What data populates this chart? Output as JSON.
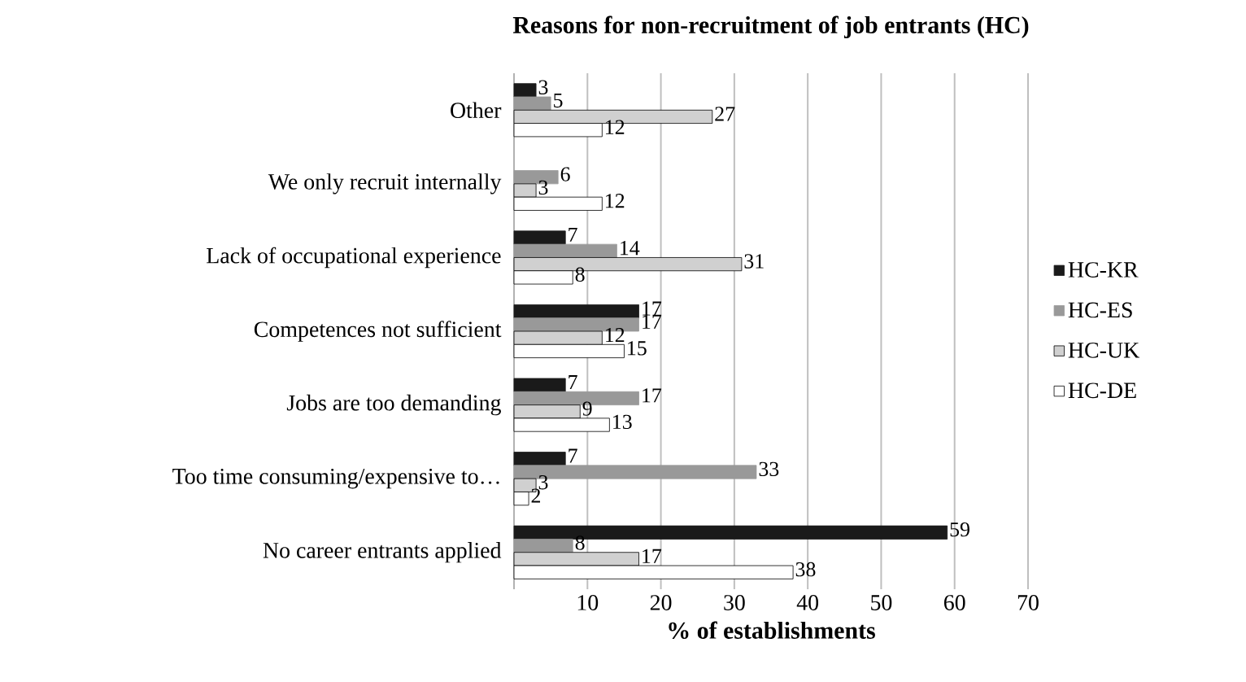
{
  "chart_data": {
    "type": "bar",
    "orientation": "horizontal",
    "title": "Reasons for non-recruitment of job entrants (HC)",
    "xlabel": "% of establishments",
    "categories": [
      "Other",
      "We only recruit internally",
      "Lack of occupational experience",
      "Competences not sufficient",
      "Jobs are too demanding",
      "Too time consuming/expensive to…",
      "No career entrants applied"
    ],
    "series": [
      {
        "name": "HC-KR",
        "color": "#1a1a1a",
        "values": [
          3,
          null,
          7,
          17,
          7,
          7,
          59
        ]
      },
      {
        "name": "HC-ES",
        "color": "#999999",
        "values": [
          5,
          6,
          14,
          17,
          17,
          33,
          8
        ]
      },
      {
        "name": "HC-UK",
        "color": "#d0d0d0",
        "values": [
          27,
          3,
          31,
          12,
          9,
          3,
          17
        ]
      },
      {
        "name": "HC-DE",
        "color": "#ffffff",
        "values": [
          12,
          12,
          8,
          15,
          13,
          2,
          38
        ]
      }
    ],
    "xlim": [
      0,
      70
    ],
    "xticks": [
      {
        "value": 0,
        "label": null
      },
      10,
      20,
      30,
      40,
      50,
      60,
      70
    ],
    "grid": "x",
    "legend": "right",
    "data_labels": true
  }
}
